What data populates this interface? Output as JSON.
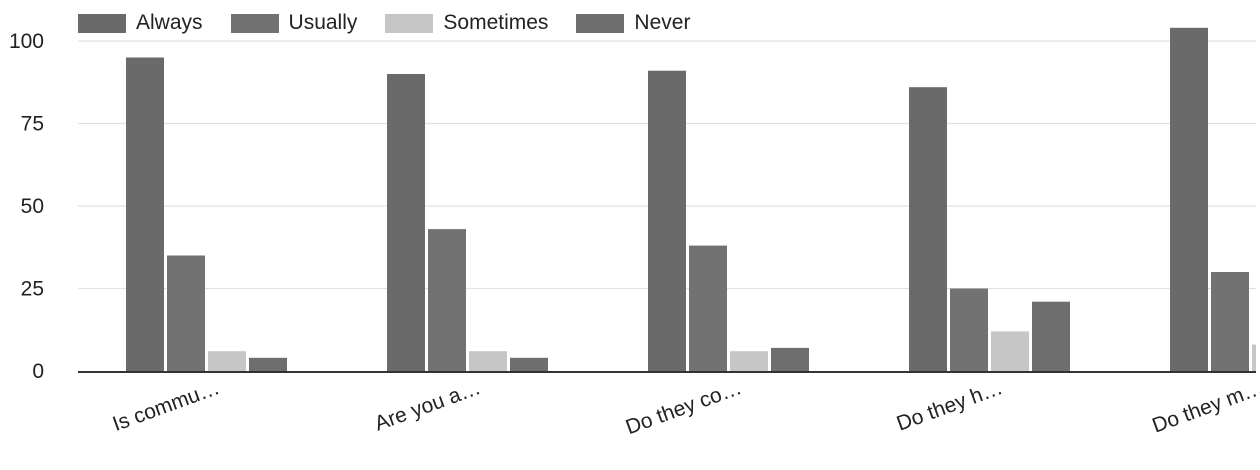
{
  "chart_data": {
    "type": "bar",
    "categories": [
      "Is commu…",
      "Are you a…",
      "Do they co…",
      "Do they h…",
      "Do they m…"
    ],
    "series": [
      {
        "name": "Always",
        "values": [
          95,
          90,
          91,
          86,
          104
        ],
        "color": "#6a6a6a"
      },
      {
        "name": "Usually",
        "values": [
          35,
          43,
          38,
          25,
          30
        ],
        "color": "#727272"
      },
      {
        "name": "Sometimes",
        "values": [
          6,
          6,
          6,
          12,
          8
        ],
        "color": "#c6c6c6"
      },
      {
        "name": "Never",
        "values": [
          4,
          4,
          7,
          21,
          0
        ],
        "color": "#6e6e6e"
      }
    ],
    "yticks": [
      0,
      25,
      50,
      75,
      100
    ],
    "ylim": [
      0,
      104
    ],
    "grid": true,
    "legend_position": "top-left",
    "title": "",
    "xlabel": "",
    "ylabel": ""
  }
}
